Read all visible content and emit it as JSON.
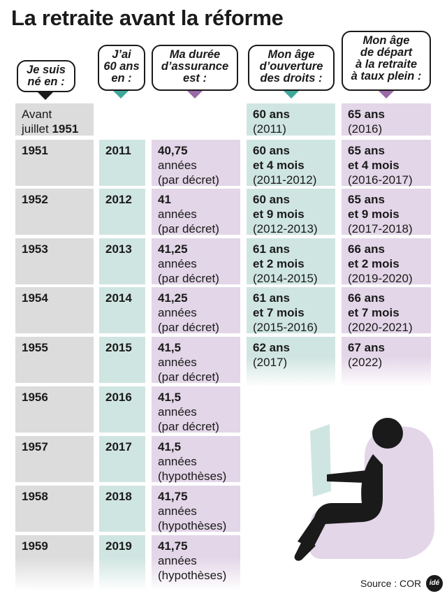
{
  "title": "La retraite avant la réforme",
  "headers": {
    "born": "Je suis\nné en :",
    "age60": "J’ai\n60 ans\nen :",
    "duration": "Ma durée\nd’assurance\nest :",
    "opening": "Mon âge\nd’ouverture\ndes droits :",
    "fullrate": "Mon âge\nde départ\nà la retraite\nà taux plein :"
  },
  "rows": [
    {
      "born_pre": "Avant\njuillet ",
      "born": "1951",
      "year60": "",
      "dur_value": "",
      "dur_note": "",
      "open_age": "60 ans",
      "open_years": "(2011)",
      "full_age": "65 ans",
      "full_years": "(2016)"
    },
    {
      "born_pre": "",
      "born": "1951",
      "year60": "2011",
      "dur_value": "40,75",
      "dur_note": "années\n(par décret)",
      "open_age": "60 ans\net 4 mois",
      "open_years": "(2011-2012)",
      "full_age": "65 ans\net 4 mois",
      "full_years": "(2016-2017)"
    },
    {
      "born_pre": "",
      "born": "1952",
      "year60": "2012",
      "dur_value": "41",
      "dur_note": "années\n(par décret)",
      "open_age": "60 ans\net 9 mois",
      "open_years": "(2012-2013)",
      "full_age": "65 ans\net 9 mois",
      "full_years": "(2017-2018)"
    },
    {
      "born_pre": "",
      "born": "1953",
      "year60": "2013",
      "dur_value": "41,25",
      "dur_note": "années\n(par décret)",
      "open_age": "61 ans\net 2 mois",
      "open_years": "(2014-2015)",
      "full_age": "66 ans\net 2 mois",
      "full_years": "(2019-2020)"
    },
    {
      "born_pre": "",
      "born": "1954",
      "year60": "2014",
      "dur_value": "41,25",
      "dur_note": "années\n(par décret)",
      "open_age": "61 ans\net 7 mois",
      "open_years": "(2015-2016)",
      "full_age": "66 ans\net 7 mois",
      "full_years": "(2020-2021)"
    },
    {
      "born_pre": "",
      "born": "1955",
      "year60": "2015",
      "dur_value": "41,5",
      "dur_note": "années\n(par décret)",
      "open_age": "62 ans",
      "open_years": "(2017)",
      "full_age": "67 ans",
      "full_years": "(2022)"
    },
    {
      "born_pre": "",
      "born": "1956",
      "year60": "2016",
      "dur_value": "41,5",
      "dur_note": "années\n(par décret)",
      "open_age": "",
      "open_years": "",
      "full_age": "",
      "full_years": ""
    },
    {
      "born_pre": "",
      "born": "1957",
      "year60": "2017",
      "dur_value": "41,5",
      "dur_note": "années\n(hypothèses)",
      "open_age": "",
      "open_years": "",
      "full_age": "",
      "full_years": ""
    },
    {
      "born_pre": "",
      "born": "1958",
      "year60": "2018",
      "dur_value": "41,75",
      "dur_note": "années\n(hypothèses)",
      "open_age": "",
      "open_years": "",
      "full_age": "",
      "full_years": ""
    },
    {
      "born_pre": "",
      "born": "1959",
      "year60": "2019",
      "dur_value": "41,75",
      "dur_note": "années\n(hypothèses)",
      "open_age": "",
      "open_years": "",
      "full_age": "",
      "full_years": ""
    }
  ],
  "source": "Source : COR",
  "logo": "idé",
  "colors": {
    "gray": "#dcdcdc",
    "teal": "#cfe5e1",
    "purple": "#e3d6e8",
    "teal_arrow": "#3fa89a",
    "purple_arrow": "#9b6aa6"
  },
  "illustration": "person-in-armchair-reading"
}
